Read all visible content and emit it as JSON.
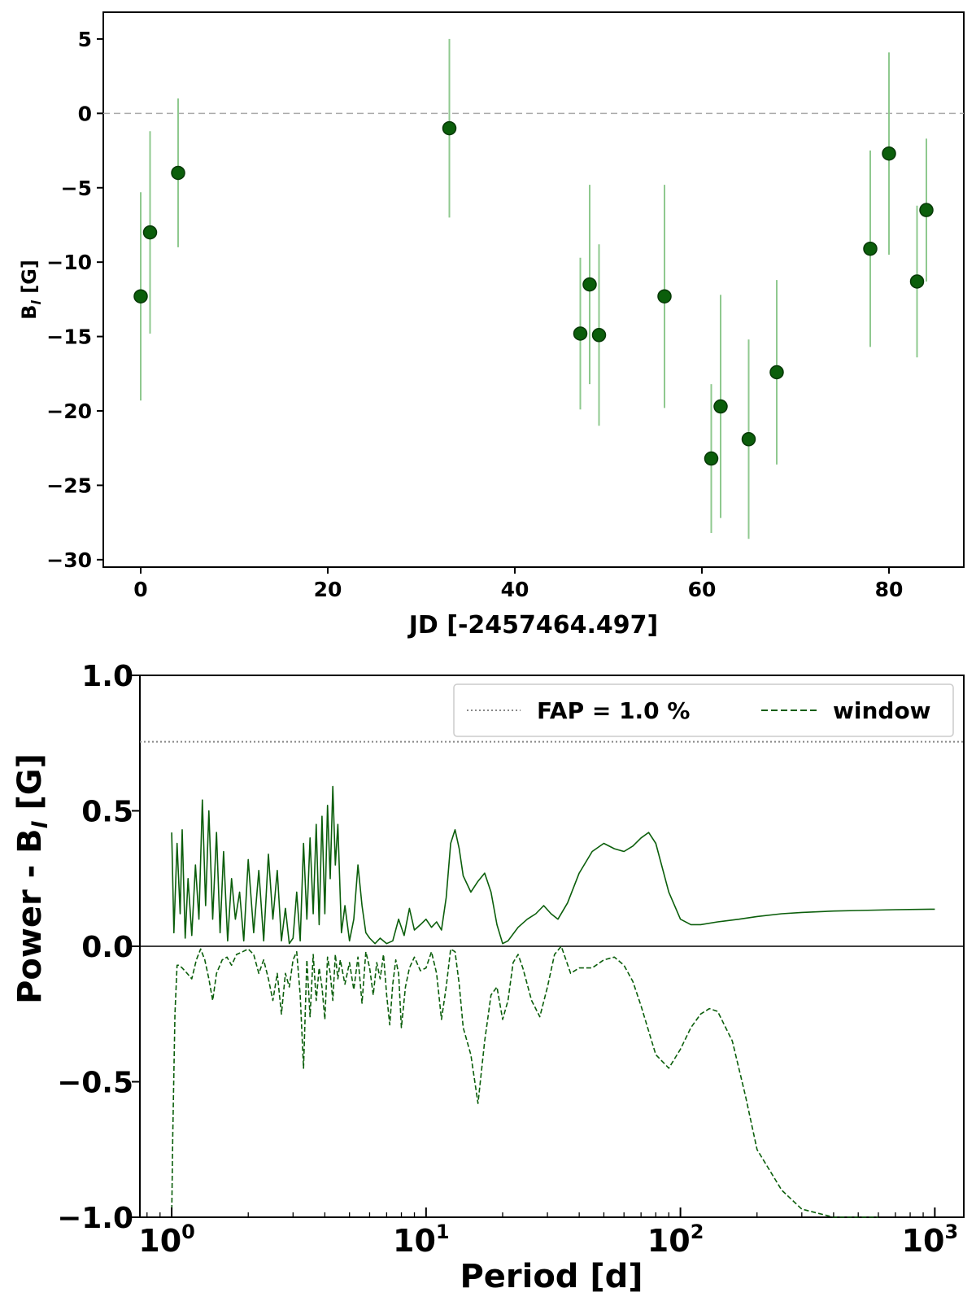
{
  "chart_data": [
    {
      "type": "scatter",
      "title": "",
      "xlabel": "JD [-2457464.497]",
      "ylabel": "B_l [G]",
      "ylabel_main": "B",
      "ylabel_sub": "l",
      "ylabel_unit": " [G]",
      "xlim": [
        -4,
        88
      ],
      "ylim": [
        -30.5,
        6.8
      ],
      "xticks": [
        0,
        20,
        40,
        60,
        80
      ],
      "xtick_labels": [
        "0",
        "20",
        "40",
        "60",
        "80"
      ],
      "yticks": [
        5,
        0,
        -5,
        -10,
        -15,
        -20,
        -25,
        -30
      ],
      "ytick_labels": [
        "5",
        "0",
        "−5",
        "−10",
        "−15",
        "−20",
        "−25",
        "−30"
      ],
      "reference_line": 0,
      "marker_color": "#0b5e0b",
      "errorbar_color": "#8fc98f",
      "grid": false,
      "series": [
        {
          "x": [
            0.0,
            1.0,
            4.0,
            33.0,
            47.0,
            48.0,
            49.0,
            56.0,
            61.0,
            62.0,
            65.0,
            68.0,
            78.0,
            80.0,
            83.0,
            84.0
          ],
          "y": [
            -12.3,
            -8.0,
            -4.0,
            -1.0,
            -14.8,
            -11.5,
            -14.9,
            -12.3,
            -23.2,
            -19.7,
            -21.9,
            -17.4,
            -9.1,
            -2.7,
            -11.3,
            -6.5
          ],
          "err": [
            7.0,
            6.8,
            5.0,
            6.0,
            5.1,
            6.7,
            6.1,
            7.5,
            5.0,
            7.5,
            6.7,
            6.2,
            6.6,
            6.8,
            5.1,
            4.8
          ]
        }
      ]
    },
    {
      "type": "line",
      "title": "",
      "xlabel": "Period [d]",
      "ylabel": "Power - B_l  [G]",
      "ylabel_main": "Power - B",
      "ylabel_sub": "l",
      "ylabel_unit": "  [G]",
      "xscale": "log",
      "xlim": [
        0.75,
        1300
      ],
      "ylim": [
        -1.0,
        1.0
      ],
      "xticks": [
        1,
        10,
        100,
        1000
      ],
      "xtick_labels": [
        [
          "10",
          "0"
        ],
        [
          "10",
          "1"
        ],
        [
          "10",
          "2"
        ],
        [
          "10",
          "3"
        ]
      ],
      "yticks": [
        1.0,
        0.5,
        0.0,
        -0.5,
        -1.0
      ],
      "ytick_labels": [
        "1.0",
        "0.5",
        "0.0",
        "−0.5",
        "−1.0"
      ],
      "fap_level": 0.755,
      "zero_line": 0.0,
      "line_color": "#0b5e0b",
      "fap_color": "#888888",
      "grid": false,
      "legend": {
        "position": "top-right",
        "entries": [
          {
            "label": "FAP = 1.0 %",
            "style": "dotted",
            "color": "#888888"
          },
          {
            "label": "window",
            "style": "dashed",
            "color": "#0b5e0b"
          }
        ]
      },
      "series": [
        {
          "name": "",
          "style": "solid",
          "x": [
            1.0,
            1.02,
            1.05,
            1.08,
            1.1,
            1.13,
            1.16,
            1.2,
            1.24,
            1.28,
            1.32,
            1.36,
            1.4,
            1.45,
            1.5,
            1.55,
            1.6,
            1.66,
            1.72,
            1.78,
            1.85,
            1.92,
            2.0,
            2.1,
            2.2,
            2.3,
            2.4,
            2.5,
            2.6,
            2.7,
            2.8,
            2.9,
            3.0,
            3.1,
            3.2,
            3.3,
            3.4,
            3.5,
            3.6,
            3.7,
            3.8,
            3.9,
            4.0,
            4.1,
            4.2,
            4.3,
            4.4,
            4.5,
            4.65,
            4.8,
            5.0,
            5.2,
            5.4,
            5.6,
            5.8,
            6.0,
            6.3,
            6.6,
            7.0,
            7.4,
            7.8,
            8.2,
            8.6,
            9.0,
            9.5,
            10.0,
            10.5,
            11.0,
            11.5,
            12.0,
            12.5,
            13.0,
            13.5,
            14.0,
            15.0,
            16.0,
            17.0,
            18.0,
            19.0,
            20.0,
            21.0,
            23.0,
            25.0,
            27.0,
            29.0,
            31.0,
            33.0,
            36.0,
            40.0,
            45.0,
            50.0,
            55.0,
            60.0,
            65.0,
            70.0,
            75.0,
            80.0,
            90.0,
            100.0,
            110.0,
            120.0,
            140.0,
            170.0,
            200.0,
            250.0,
            300.0,
            400.0,
            500.0,
            700.0,
            1000.0
          ],
          "y": [
            0.42,
            0.05,
            0.38,
            0.12,
            0.43,
            0.03,
            0.25,
            0.04,
            0.3,
            0.1,
            0.54,
            0.15,
            0.5,
            0.1,
            0.42,
            0.05,
            0.35,
            0.02,
            0.25,
            0.1,
            0.2,
            0.02,
            0.32,
            0.05,
            0.28,
            0.02,
            0.34,
            0.1,
            0.28,
            0.02,
            0.14,
            0.01,
            0.03,
            0.2,
            0.02,
            0.38,
            0.1,
            0.4,
            0.12,
            0.45,
            0.08,
            0.48,
            0.12,
            0.52,
            0.25,
            0.59,
            0.3,
            0.45,
            0.05,
            0.15,
            0.02,
            0.1,
            0.3,
            0.15,
            0.05,
            0.03,
            0.01,
            0.03,
            0.01,
            0.02,
            0.1,
            0.04,
            0.14,
            0.06,
            0.08,
            0.1,
            0.07,
            0.09,
            0.06,
            0.18,
            0.38,
            0.43,
            0.36,
            0.26,
            0.2,
            0.24,
            0.27,
            0.2,
            0.08,
            0.01,
            0.02,
            0.07,
            0.1,
            0.12,
            0.15,
            0.12,
            0.1,
            0.16,
            0.27,
            0.35,
            0.38,
            0.36,
            0.35,
            0.37,
            0.4,
            0.42,
            0.38,
            0.2,
            0.1,
            0.08,
            0.08,
            0.09,
            0.1,
            0.11,
            0.12,
            0.125,
            0.13,
            0.132,
            0.135,
            0.137
          ]
        },
        {
          "name": "window",
          "style": "dashed",
          "x": [
            1.0,
            1.01,
            1.03,
            1.05,
            1.07,
            1.1,
            1.15,
            1.2,
            1.25,
            1.3,
            1.35,
            1.4,
            1.45,
            1.5,
            1.58,
            1.65,
            1.72,
            1.8,
            1.9,
            2.0,
            2.1,
            2.2,
            2.3,
            2.4,
            2.5,
            2.6,
            2.7,
            2.8,
            2.9,
            3.0,
            3.1,
            3.2,
            3.3,
            3.4,
            3.5,
            3.6,
            3.7,
            3.8,
            3.9,
            4.0,
            4.1,
            4.2,
            4.3,
            4.4,
            4.5,
            4.6,
            4.8,
            5.0,
            5.2,
            5.4,
            5.6,
            5.8,
            6.0,
            6.2,
            6.4,
            6.6,
            6.8,
            7.0,
            7.2,
            7.4,
            7.6,
            7.8,
            8.0,
            8.3,
            8.6,
            9.0,
            9.5,
            10.0,
            10.5,
            11.0,
            11.5,
            12.0,
            12.5,
            13.0,
            13.5,
            14.0,
            15.0,
            16.0,
            17.0,
            18.0,
            19.0,
            20.0,
            21.0,
            22.0,
            23.0,
            24.0,
            26.0,
            28.0,
            30.0,
            32.0,
            34.0,
            37.0,
            40.0,
            45.0,
            50.0,
            55.0,
            60.0,
            65.0,
            70.0,
            80.0,
            90.0,
            100.0,
            110.0,
            120.0,
            130.0,
            140.0,
            160.0,
            180.0,
            200.0,
            250.0,
            300.0,
            400.0,
            500.0,
            600.0
          ],
          "y": [
            -1.0,
            -0.7,
            -0.25,
            -0.07,
            -0.07,
            -0.08,
            -0.1,
            -0.12,
            -0.05,
            -0.01,
            -0.05,
            -0.12,
            -0.2,
            -0.1,
            -0.05,
            -0.04,
            -0.07,
            -0.03,
            -0.02,
            -0.01,
            -0.03,
            -0.1,
            -0.05,
            -0.12,
            -0.2,
            -0.1,
            -0.25,
            -0.1,
            -0.15,
            -0.05,
            -0.02,
            -0.18,
            -0.45,
            -0.05,
            -0.26,
            -0.03,
            -0.2,
            -0.08,
            -0.15,
            -0.27,
            -0.04,
            -0.1,
            -0.2,
            -0.03,
            -0.12,
            -0.05,
            -0.14,
            -0.06,
            -0.16,
            -0.04,
            -0.21,
            -0.02,
            -0.08,
            -0.18,
            -0.06,
            -0.12,
            -0.03,
            -0.18,
            -0.29,
            -0.14,
            -0.05,
            -0.1,
            -0.3,
            -0.15,
            -0.08,
            -0.04,
            -0.09,
            -0.08,
            -0.02,
            -0.1,
            -0.27,
            -0.15,
            -0.01,
            -0.02,
            -0.14,
            -0.3,
            -0.4,
            -0.58,
            -0.35,
            -0.18,
            -0.15,
            -0.27,
            -0.2,
            -0.06,
            -0.03,
            -0.08,
            -0.2,
            -0.26,
            -0.15,
            -0.03,
            0.0,
            -0.1,
            -0.08,
            -0.08,
            -0.05,
            -0.04,
            -0.07,
            -0.13,
            -0.22,
            -0.4,
            -0.45,
            -0.38,
            -0.3,
            -0.25,
            -0.23,
            -0.24,
            -0.35,
            -0.55,
            -0.75,
            -0.9,
            -0.97,
            -1.0,
            -1.0,
            -1.0
          ]
        }
      ]
    }
  ]
}
